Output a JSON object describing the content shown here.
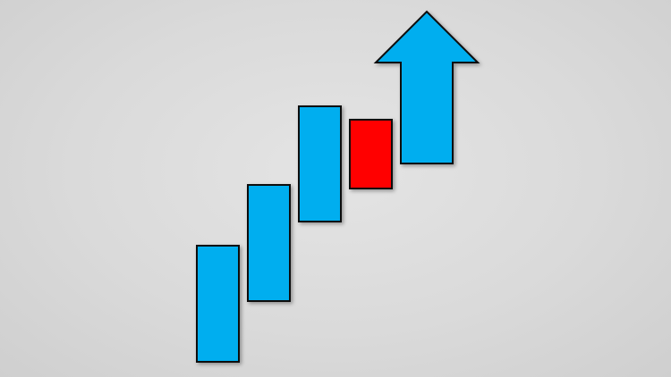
{
  "illustration": {
    "description_icon": "uptrend-candlestick-icon",
    "colors": {
      "background": "#dcdcdc",
      "bullish": "#00aeef",
      "bearish": "#ff0000",
      "outline": "#111111"
    },
    "candles": [
      {
        "kind": "bullish"
      },
      {
        "kind": "bullish"
      },
      {
        "kind": "bullish"
      },
      {
        "kind": "bearish"
      }
    ],
    "arrow": {
      "direction": "up",
      "kind": "bullish"
    }
  }
}
